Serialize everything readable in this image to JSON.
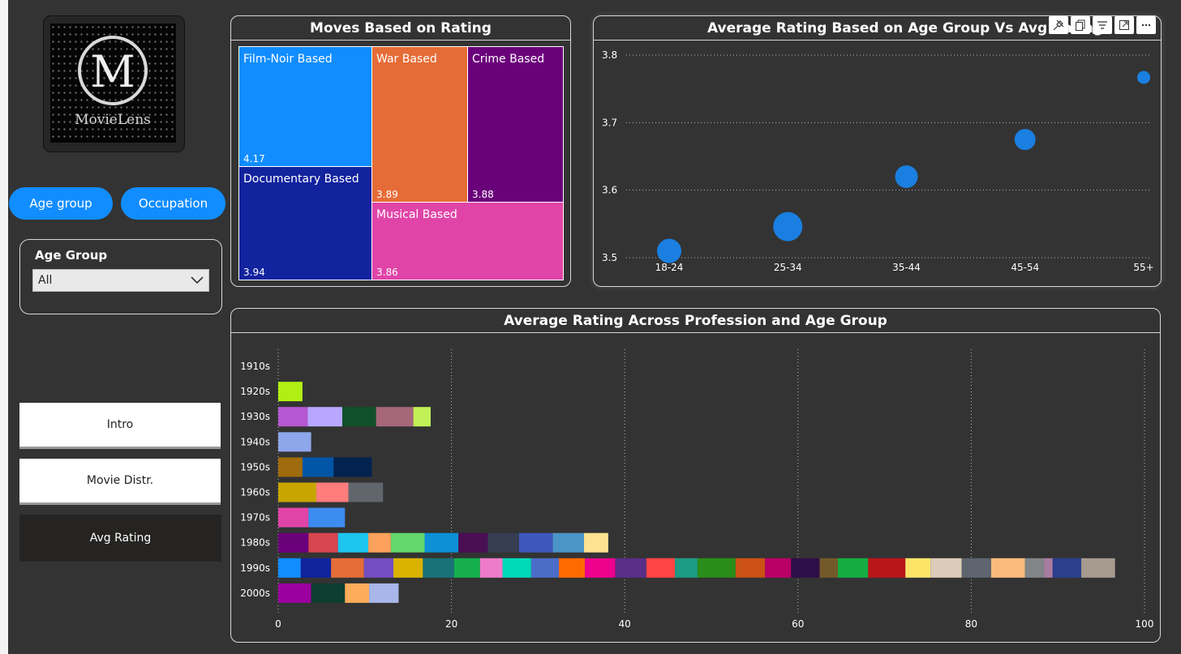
{
  "logo": {
    "letter": "M",
    "name": "MovieLens"
  },
  "buttons": {
    "age_group": "Age group",
    "occupation": "Occupation"
  },
  "slicer": {
    "title": "Age Group",
    "selected": "All"
  },
  "nav": {
    "intro": "Intro",
    "movie_distr": "Movie Distr.",
    "avg_rating": "Avg Rating"
  },
  "treemap": {
    "title": "Moves Based on Rating",
    "items": [
      {
        "label": "Film-Noir Based",
        "value": "4.17",
        "color": "#118dff"
      },
      {
        "label": "Documentary Based",
        "value": "3.94",
        "color": "#12239e"
      },
      {
        "label": "War Based",
        "value": "3.89",
        "color": "#e66c37"
      },
      {
        "label": "Crime Based",
        "value": "3.88",
        "color": "#6b007b"
      },
      {
        "label": "Musical Based",
        "value": "3.86",
        "color": "#e044a7"
      }
    ]
  },
  "visual_header_icons": [
    "pin-icon",
    "copy-icon",
    "filter-icon",
    "focus-mode-icon",
    "more-options-icon"
  ],
  "chart_data": [
    {
      "type": "scatter",
      "title": "Average Rating Based on Age Group Vs Avg Rating",
      "categories": [
        "18-24",
        "25-34",
        "35-44",
        "45-54",
        "55+"
      ],
      "values": [
        3.51,
        3.546,
        3.62,
        3.675,
        3.767
      ],
      "yticks": [
        "3.8",
        "3.7",
        "3.6",
        "3.5"
      ],
      "ylim": [
        3.5,
        3.8
      ],
      "grid": true,
      "color": "#1a7fe0"
    },
    {
      "type": "bar",
      "orientation": "horizontal",
      "stacked": true,
      "title": "Average Rating Across Profession and Age Group",
      "categories": [
        "1910s",
        "1920s",
        "1930s",
        "1940s",
        "1950s",
        "1960s",
        "1970s",
        "1980s",
        "1990s",
        "2000s"
      ],
      "xticks": [
        "0",
        "20",
        "40",
        "60",
        "80",
        "100"
      ],
      "xlim": [
        0,
        100
      ],
      "segments": [
        [],
        [
          [
            2.8,
            "#b1ef14"
          ]
        ],
        [
          [
            3.4,
            "#b657d2"
          ],
          [
            4.0,
            "#b8a7ff"
          ],
          [
            3.9,
            "#10502a"
          ],
          [
            4.3,
            "#a6677a"
          ],
          [
            2.0,
            "#c1f156"
          ]
        ],
        [
          [
            3.8,
            "#8ea6ea"
          ]
        ],
        [
          [
            2.8,
            "#a06b0c"
          ],
          [
            3.6,
            "#0055a6"
          ],
          [
            4.4,
            "#03224f"
          ]
        ],
        [
          [
            4.4,
            "#c8a500"
          ],
          [
            3.7,
            "#ff7d7d"
          ],
          [
            4.0,
            "#61666d"
          ]
        ],
        [
          [
            3.5,
            "#e044a7"
          ],
          [
            4.2,
            "#3d8cf0"
          ]
        ],
        [
          [
            3.5,
            "#6b007b"
          ],
          [
            3.4,
            "#d64550"
          ],
          [
            3.5,
            "#1cc6ee"
          ],
          [
            2.6,
            "#fea15c"
          ],
          [
            3.9,
            "#63d66c"
          ],
          [
            3.9,
            "#0c91d6"
          ],
          [
            3.4,
            "#4a0e52"
          ],
          [
            3.6,
            "#373d52"
          ],
          [
            3.9,
            "#3e57bd"
          ],
          [
            3.6,
            "#4b95c7"
          ],
          [
            2.8,
            "#fde290"
          ]
        ],
        [
          [
            2.6,
            "#118dff"
          ],
          [
            3.5,
            "#12239e"
          ],
          [
            3.8,
            "#e66c37"
          ],
          [
            3.4,
            "#744ec2"
          ],
          [
            3.4,
            "#d9b300"
          ],
          [
            3.6,
            "#197278"
          ],
          [
            3.0,
            "#15b04d"
          ],
          [
            2.6,
            "#ef7ccb"
          ],
          [
            3.3,
            "#01d9b8"
          ],
          [
            3.2,
            "#4b6dc8"
          ],
          [
            3.0,
            "#ff6a00"
          ],
          [
            3.5,
            "#ec008c"
          ],
          [
            3.6,
            "#5a2d86"
          ],
          [
            3.3,
            "#ff4545"
          ],
          [
            2.6,
            "#1d9b84"
          ],
          [
            4.4,
            "#2a8c1a"
          ],
          [
            3.4,
            "#cb5114"
          ],
          [
            3.0,
            "#b80066"
          ],
          [
            3.3,
            "#2d0e48"
          ],
          [
            2.1,
            "#745a2b"
          ],
          [
            3.5,
            "#15ad43"
          ],
          [
            4.3,
            "#b9161a"
          ],
          [
            2.9,
            "#fde468"
          ],
          [
            3.6,
            "#dccbb9"
          ],
          [
            3.4,
            "#5f656f"
          ],
          [
            3.9,
            "#fbbb7c"
          ],
          [
            2.2,
            "#828588"
          ],
          [
            1.0,
            "#a87ba1"
          ],
          [
            3.3,
            "#2b3f8c"
          ],
          [
            3.9,
            "#a69a8f"
          ]
        ],
        [
          [
            3.8,
            "#9b009e"
          ],
          [
            3.9,
            "#0d3e30"
          ],
          [
            2.8,
            "#fdac5b"
          ],
          [
            3.4,
            "#a8b6ea"
          ]
        ]
      ]
    }
  ]
}
